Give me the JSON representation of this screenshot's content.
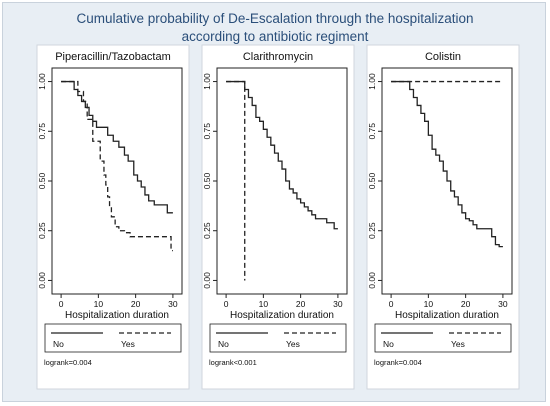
{
  "figure_title": {
    "line1": "Cumulative probability of De-Escalation through the hospitalization",
    "line2": "according to antibiotic regiment"
  },
  "chart_data": [
    {
      "type": "line",
      "title": "Piperacillin/Tazobactam",
      "xlabel": "Hospitalization duration",
      "ylabel": "",
      "xlim": [
        0,
        30
      ],
      "ylim": [
        0,
        1
      ],
      "xticks": [
        "0",
        "10",
        "20",
        "30"
      ],
      "yticks": [
        "0.00",
        "0.25",
        "0.50",
        "0.75",
        "1.00"
      ],
      "legend_position": "bottom",
      "annotation": "logrank=0.004",
      "series": [
        {
          "name": "No",
          "style": "solid",
          "x": [
            0,
            3.5,
            4.5,
            5.5,
            6.5,
            7.5,
            8.5,
            9.5,
            12.5,
            14,
            15.5,
            17,
            18,
            19.5,
            20.5,
            21.5,
            22.5,
            23.5,
            25,
            28.5,
            30
          ],
          "y": [
            1.0,
            0.96,
            0.93,
            0.9,
            0.87,
            0.83,
            0.8,
            0.77,
            0.73,
            0.7,
            0.67,
            0.63,
            0.6,
            0.53,
            0.5,
            0.47,
            0.43,
            0.4,
            0.38,
            0.34,
            0.34
          ]
        },
        {
          "name": "Yes",
          "style": "dashed",
          "x": [
            0,
            4.5,
            6,
            7,
            8.5,
            10.5,
            11.5,
            12,
            12.5,
            13,
            13.5,
            14.5,
            15.5,
            17,
            18.5,
            29,
            29.5,
            30
          ],
          "y": [
            1.0,
            0.95,
            0.9,
            0.81,
            0.7,
            0.6,
            0.53,
            0.48,
            0.42,
            0.37,
            0.32,
            0.27,
            0.25,
            0.24,
            0.22,
            0.22,
            0.15,
            0.15
          ]
        }
      ]
    },
    {
      "type": "line",
      "title": "Clarithromycin",
      "xlabel": "Hospitalization duration",
      "ylabel": "",
      "xlim": [
        0,
        30
      ],
      "ylim": [
        0,
        1
      ],
      "xticks": [
        "0",
        "10",
        "20",
        "30"
      ],
      "yticks": [
        "0.00",
        "0.25",
        "0.50",
        "0.75",
        "1.00"
      ],
      "legend_position": "bottom",
      "annotation": "logrank<0.001",
      "series": [
        {
          "name": "No",
          "style": "solid",
          "x": [
            0,
            5,
            6,
            7,
            8,
            9,
            10,
            11,
            12,
            13,
            14,
            15,
            16,
            17,
            18,
            19,
            20,
            21,
            22,
            23,
            24,
            27,
            29,
            30
          ],
          "y": [
            1.0,
            0.96,
            0.92,
            0.88,
            0.82,
            0.8,
            0.76,
            0.72,
            0.68,
            0.64,
            0.6,
            0.56,
            0.5,
            0.46,
            0.44,
            0.41,
            0.39,
            0.37,
            0.35,
            0.33,
            0.31,
            0.29,
            0.26,
            0.26
          ]
        },
        {
          "name": "Yes",
          "style": "dashed",
          "x": [
            0,
            5,
            5
          ],
          "y": [
            1.0,
            1.0,
            0.0
          ]
        }
      ]
    },
    {
      "type": "line",
      "title": "Colistin",
      "xlabel": "Hospitalization duration",
      "ylabel": "",
      "xlim": [
        0,
        30
      ],
      "ylim": [
        0,
        1
      ],
      "xticks": [
        "0",
        "10",
        "20",
        "30"
      ],
      "yticks": [
        "0.00",
        "0.25",
        "0.50",
        "0.75",
        "1.00"
      ],
      "legend_position": "bottom",
      "annotation": "logrank=0.004",
      "series": [
        {
          "name": "No",
          "style": "solid",
          "x": [
            0,
            5,
            6,
            7,
            8,
            9,
            10,
            11,
            12,
            13,
            14,
            15,
            16,
            17,
            18,
            19,
            20,
            21,
            22,
            23,
            27,
            28,
            29,
            30
          ],
          "y": [
            1.0,
            0.96,
            0.92,
            0.88,
            0.84,
            0.8,
            0.73,
            0.66,
            0.63,
            0.6,
            0.55,
            0.5,
            0.45,
            0.42,
            0.38,
            0.34,
            0.31,
            0.3,
            0.28,
            0.26,
            0.22,
            0.18,
            0.17,
            0.17
          ]
        },
        {
          "name": "Yes",
          "style": "dashed",
          "x": [
            0,
            30
          ],
          "y": [
            1.0,
            1.0
          ]
        }
      ]
    }
  ]
}
